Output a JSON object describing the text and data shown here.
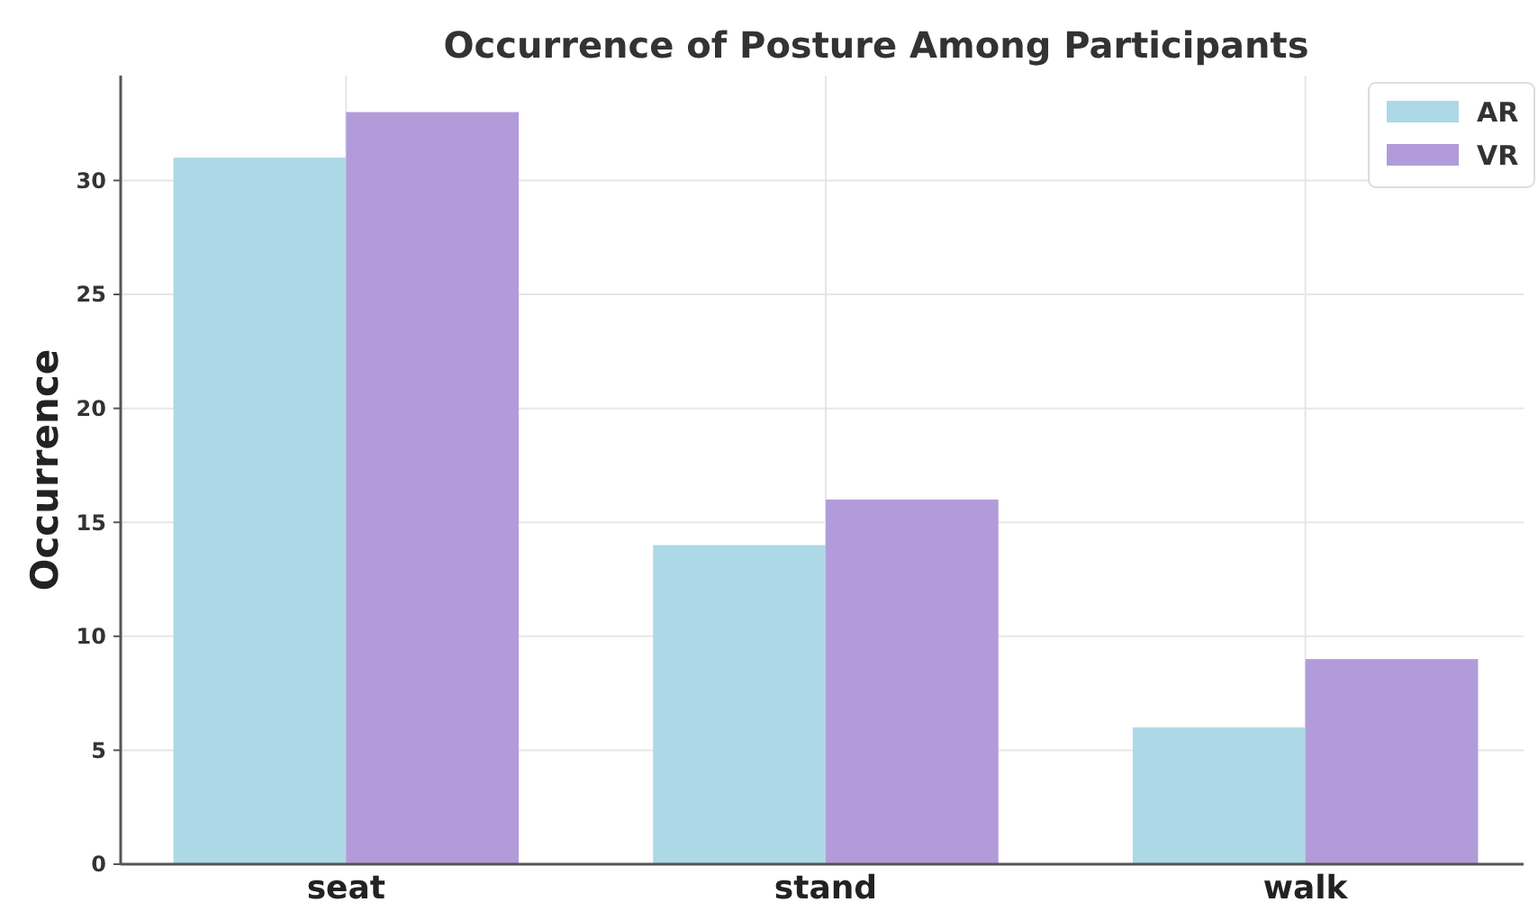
{
  "chart_data": {
    "type": "bar",
    "title": "Occurrence of Posture Among Participants",
    "ylabel": "Occurrence",
    "categories": [
      "seat",
      "stand",
      "walk"
    ],
    "series": [
      {
        "name": "AR",
        "color": "#add8e6",
        "values": [
          31,
          14,
          6
        ]
      },
      {
        "name": "VR",
        "color": "#b19cd9",
        "values": [
          33,
          16,
          9
        ]
      }
    ],
    "ylim": [
      0,
      34.6
    ],
    "yticks": [
      0,
      5,
      10,
      15,
      20,
      25,
      30
    ],
    "grid": true,
    "legend": "top right"
  }
}
